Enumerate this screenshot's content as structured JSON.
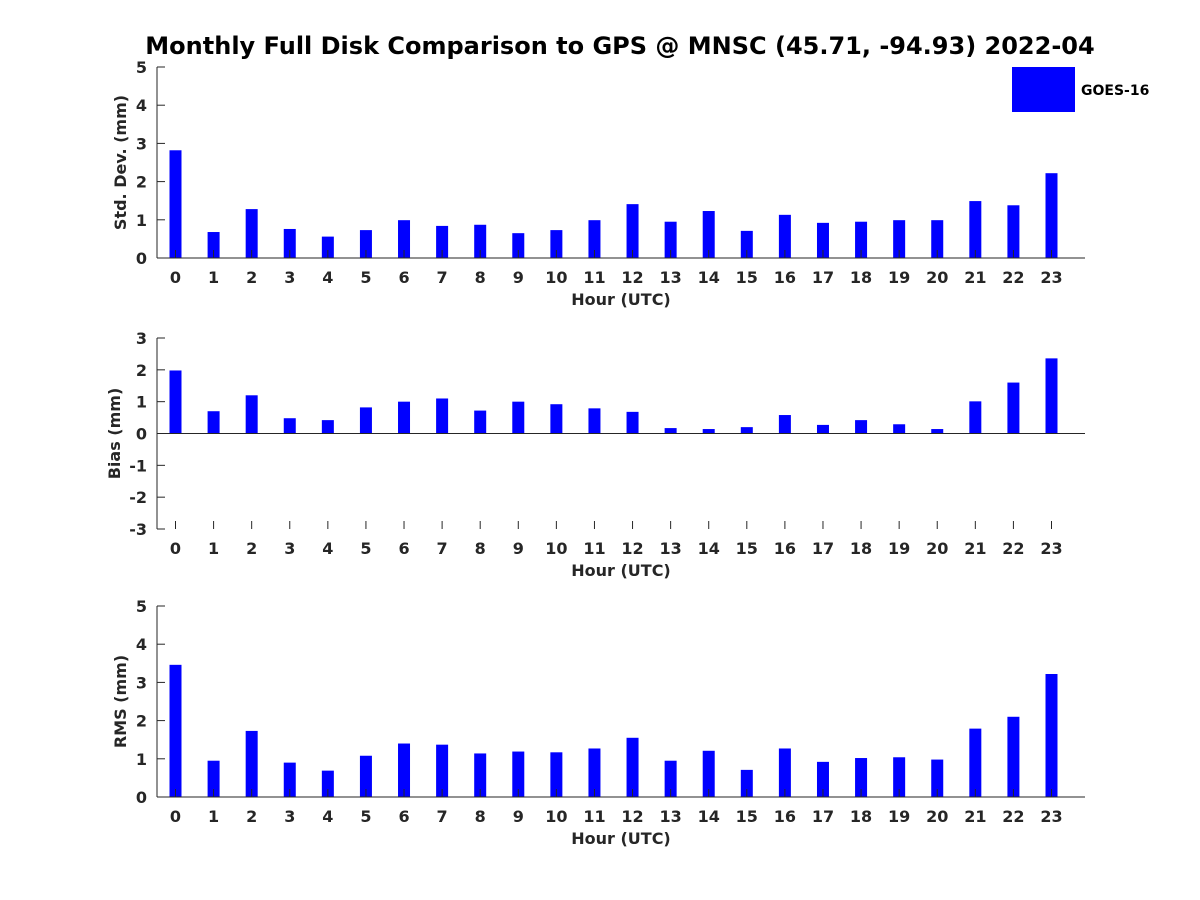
{
  "chart_data": [
    {
      "type": "bar",
      "title": "Monthly Full Disk Comparison to GPS @ MNSC (45.71, -94.93) 2022-04",
      "xlabel": "Hour (UTC)",
      "ylabel": "Std. Dev. (mm)",
      "ylim": [
        0,
        5
      ],
      "yticks": [
        "0",
        "1",
        "2",
        "3",
        "4",
        "5"
      ],
      "categories": [
        "0",
        "1",
        "2",
        "3",
        "4",
        "5",
        "6",
        "7",
        "8",
        "9",
        "10",
        "11",
        "12",
        "13",
        "14",
        "15",
        "16",
        "17",
        "18",
        "19",
        "20",
        "21",
        "22",
        "23"
      ],
      "series": [
        {
          "name": "GOES-16",
          "color": "#0000ff",
          "values": [
            2.82,
            0.68,
            1.28,
            0.76,
            0.56,
            0.73,
            0.99,
            0.84,
            0.87,
            0.65,
            0.73,
            0.99,
            1.41,
            0.95,
            1.23,
            0.71,
            1.13,
            0.92,
            0.95,
            0.99,
            0.99,
            1.49,
            1.38,
            2.22
          ]
        }
      ],
      "legend": {
        "position": "top-right",
        "label": "GOES-16"
      }
    },
    {
      "type": "bar",
      "title": "",
      "xlabel": "Hour (UTC)",
      "ylabel": "Bias (mm)",
      "ylim": [
        -3,
        3
      ],
      "yticks": [
        "-3",
        "-2",
        "-1",
        "0",
        "1",
        "2",
        "3"
      ],
      "categories": [
        "0",
        "1",
        "2",
        "3",
        "4",
        "5",
        "6",
        "7",
        "8",
        "9",
        "10",
        "11",
        "12",
        "13",
        "14",
        "15",
        "16",
        "17",
        "18",
        "19",
        "20",
        "21",
        "22",
        "23"
      ],
      "series": [
        {
          "name": "GOES-16",
          "color": "#0000ff",
          "values": [
            1.98,
            0.7,
            1.2,
            0.48,
            0.42,
            0.82,
            1.0,
            1.1,
            0.72,
            1.0,
            0.92,
            0.79,
            0.68,
            0.17,
            0.14,
            0.2,
            0.58,
            0.27,
            0.42,
            0.29,
            0.14,
            1.01,
            1.6,
            2.36
          ]
        }
      ]
    },
    {
      "type": "bar",
      "title": "",
      "xlabel": "Hour (UTC)",
      "ylabel": "RMS (mm)",
      "ylim": [
        0,
        5
      ],
      "yticks": [
        "0",
        "1",
        "2",
        "3",
        "4",
        "5"
      ],
      "categories": [
        "0",
        "1",
        "2",
        "3",
        "4",
        "5",
        "6",
        "7",
        "8",
        "9",
        "10",
        "11",
        "12",
        "13",
        "14",
        "15",
        "16",
        "17",
        "18",
        "19",
        "20",
        "21",
        "22",
        "23"
      ],
      "series": [
        {
          "name": "GOES-16",
          "color": "#0000ff",
          "values": [
            3.46,
            0.95,
            1.73,
            0.9,
            0.69,
            1.08,
            1.4,
            1.37,
            1.14,
            1.19,
            1.17,
            1.27,
            1.55,
            0.95,
            1.21,
            0.71,
            1.27,
            0.92,
            1.02,
            1.04,
            0.98,
            1.79,
            2.1,
            3.22
          ]
        }
      ]
    }
  ]
}
